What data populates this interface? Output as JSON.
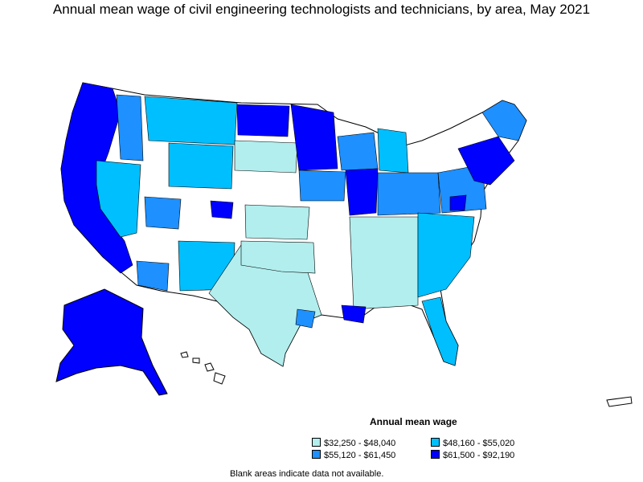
{
  "title": "Annual mean wage of civil engineering technologists and technicians, by area, May 2021",
  "legend": {
    "title": "Annual mean wage",
    "items": [
      {
        "label": "$32,250 - $48,040",
        "color": "#b2eeee"
      },
      {
        "label": "$48,160 - $55,020",
        "color": "#00bfff"
      },
      {
        "label": "$55,120 - $61,450",
        "color": "#1e90ff"
      },
      {
        "label": "$61,500 - $92,190",
        "color": "#0000ff"
      }
    ]
  },
  "footnote": "Blank areas indicate data not available.",
  "colors": {
    "none": "#ffffff",
    "border": "#000000"
  }
}
